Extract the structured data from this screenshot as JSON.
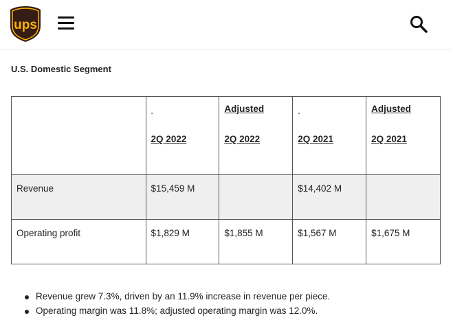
{
  "header": {
    "logo_text": "ups",
    "logo_colors": {
      "shield": "#351c15",
      "gold": "#ffb500"
    },
    "menu_icon": "hamburger-menu-icon",
    "search_icon": "search-icon"
  },
  "section": {
    "title": "U.S. Domestic Segment"
  },
  "table": {
    "columns": [
      {
        "top": "",
        "bottom": ""
      },
      {
        "top": "-",
        "bottom": "2Q 2022"
      },
      {
        "top": "Adjusted",
        "bottom": "2Q 2022"
      },
      {
        "top": "-",
        "bottom": "2Q 2021"
      },
      {
        "top": "Adjusted",
        "bottom": "2Q 2021"
      }
    ],
    "rows": [
      {
        "label": "Revenue",
        "cells": [
          "$15,459 M",
          "",
          "$14,402 M",
          ""
        ]
      },
      {
        "label": "Operating profit",
        "cells": [
          "$1,829 M",
          "$1,855 M",
          "$1,567 M",
          "$1,675 M"
        ]
      }
    ]
  },
  "notes": [
    "Revenue grew 7.3%, driven by an 11.9% increase in revenue per piece.",
    "Operating margin was 11.8%; adjusted operating margin was 12.0%."
  ]
}
